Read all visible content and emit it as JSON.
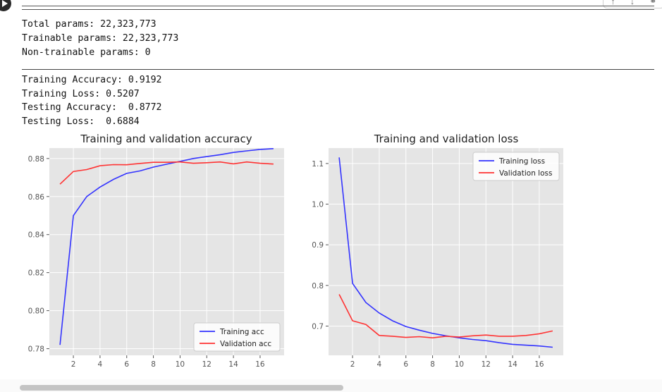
{
  "summary": {
    "total_params": "Total params: 22,323,773",
    "trainable_params": "Trainable params: 22,323,773",
    "non_trainable_params": "Non-trainable params: 0"
  },
  "metrics": {
    "training_accuracy": "Training Accuracy: 0.9192",
    "training_loss": "Training Loss: 0.5207",
    "testing_accuracy": "Testing Accuracy:  0.8772",
    "testing_loss": "Testing Loss:  0.6884"
  },
  "toolbar": {
    "icons": [
      "arrow-up-icon",
      "arrow-down-icon",
      "link-icon"
    ]
  },
  "colors": {
    "training": "#3333ff",
    "validation": "#ff3333",
    "plot_bg": "#e5e5e5",
    "grid": "#ffffff"
  },
  "chart_data": [
    {
      "type": "line",
      "title": "Training and validation accuracy",
      "xlabel": "",
      "ylabel": "",
      "x": [
        1,
        2,
        3,
        4,
        5,
        6,
        7,
        8,
        9,
        10,
        11,
        12,
        13,
        14,
        15,
        16,
        17
      ],
      "xticks": [
        2,
        4,
        6,
        8,
        10,
        12,
        14,
        16
      ],
      "yticks": [
        0.78,
        0.8,
        0.82,
        0.84,
        0.86,
        0.88
      ],
      "ytick_labels": [
        "0.78",
        "0.80",
        "0.82",
        "0.84",
        "0.86",
        "0.88"
      ],
      "xlim": [
        0.2,
        17.8
      ],
      "ylim": [
        0.7765,
        0.8855
      ],
      "legend_position": "lower-right",
      "series": [
        {
          "name": "Training acc",
          "color": "#3333ff",
          "values": [
            0.782,
            0.85,
            0.86,
            0.865,
            0.869,
            0.8722,
            0.8735,
            0.8755,
            0.877,
            0.8785,
            0.88,
            0.881,
            0.882,
            0.8832,
            0.884,
            0.8848,
            0.8852
          ]
        },
        {
          "name": "Validation acc",
          "color": "#ff3333",
          "values": [
            0.8665,
            0.8732,
            0.8742,
            0.8762,
            0.8768,
            0.8767,
            0.8774,
            0.878,
            0.878,
            0.8782,
            0.8775,
            0.8778,
            0.8782,
            0.8772,
            0.8782,
            0.8775,
            0.8771
          ]
        }
      ]
    },
    {
      "type": "line",
      "title": "Training and validation loss",
      "xlabel": "",
      "ylabel": "",
      "x": [
        1,
        2,
        3,
        4,
        5,
        6,
        7,
        8,
        9,
        10,
        11,
        12,
        13,
        14,
        15,
        16,
        17
      ],
      "xticks": [
        2,
        4,
        6,
        8,
        10,
        12,
        14,
        16
      ],
      "yticks": [
        0.7,
        0.8,
        0.9,
        1.0,
        1.1
      ],
      "ytick_labels": [
        "0.7",
        "0.8",
        "0.9",
        "1.0",
        "1.1"
      ],
      "xlim": [
        0.2,
        17.8
      ],
      "ylim": [
        0.628,
        1.138
      ],
      "legend_position": "upper-right",
      "series": [
        {
          "name": "Training loss",
          "color": "#3333ff",
          "values": [
            1.115,
            0.805,
            0.758,
            0.732,
            0.713,
            0.699,
            0.69,
            0.682,
            0.676,
            0.671,
            0.667,
            0.664,
            0.659,
            0.655,
            0.653,
            0.651,
            0.648
          ]
        },
        {
          "name": "Validation loss",
          "color": "#ff3333",
          "values": [
            0.778,
            0.713,
            0.704,
            0.677,
            0.675,
            0.672,
            0.674,
            0.671,
            0.675,
            0.673,
            0.676,
            0.678,
            0.675,
            0.675,
            0.677,
            0.681,
            0.688
          ]
        }
      ]
    }
  ]
}
